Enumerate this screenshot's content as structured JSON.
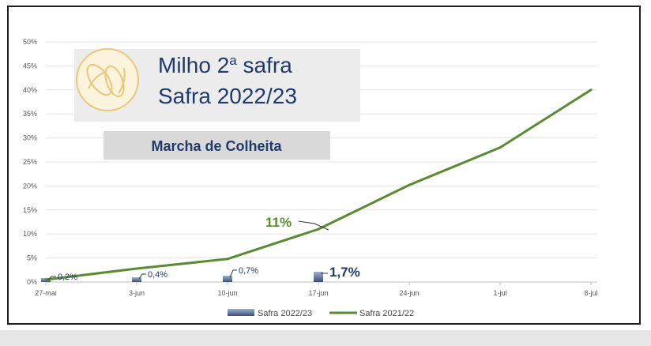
{
  "colors": {
    "line": "#5b8a34",
    "bar_dark": "#3a4f7a",
    "bar_light": "#9fb0d0",
    "title_text": "#1f3a6b",
    "subtitle_bg": "#d9d9d9",
    "title_bg": "#ececec",
    "icon": "#e8c776"
  },
  "title_box": {
    "line1_main": "Milho 2",
    "line1_sup": "a",
    "line1_rest": " safra",
    "line2": "Safra 2022/23",
    "icon": "corn-icon"
  },
  "subtitle": "Marcha de Colheita",
  "annotations": {
    "line_callout": "11%",
    "bar_labels": [
      "0,2%",
      "0,4%",
      "0,7%",
      "1,7%"
    ]
  },
  "chart_data": {
    "type": "bar",
    "categories": [
      "27-mai",
      "3-jun",
      "10-jun",
      "17-jun",
      "24-jun",
      "1-jul",
      "8-jul"
    ],
    "y_ticks": [
      "0%",
      "5%",
      "10%",
      "15%",
      "20%",
      "25%",
      "30%",
      "35%",
      "40%",
      "45%",
      "50%"
    ],
    "ylim": [
      0,
      50
    ],
    "grid": true,
    "legend_position": "bottom",
    "series": [
      {
        "name": "Safra 2022/23",
        "type": "bar",
        "values": [
          0.2,
          0.4,
          0.7,
          1.7,
          null,
          null,
          null
        ]
      },
      {
        "name": "Safra 2021/22",
        "type": "line",
        "values": [
          0.5,
          2.8,
          4.8,
          11.0,
          20.2,
          28.0,
          40.0
        ]
      }
    ]
  }
}
